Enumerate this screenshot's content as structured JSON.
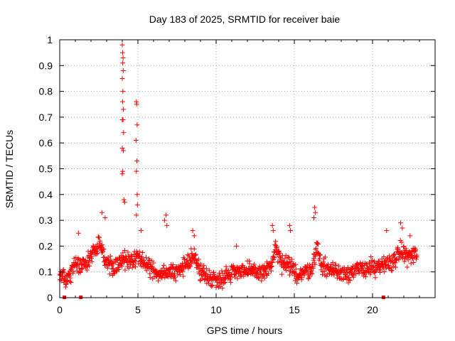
{
  "chart_data": {
    "type": "scatter",
    "title": "Day 183 of 2025, SRMTID for receiver baie",
    "xlabel": "GPS time / hours",
    "ylabel": "SRMTID / TECUs",
    "xlim": [
      0,
      24
    ],
    "ylim": [
      0,
      1
    ],
    "xticks": [
      0,
      5,
      10,
      15,
      20
    ],
    "yticks": [
      0,
      0.1,
      0.2,
      0.3,
      0.4,
      0.5,
      0.6,
      0.7,
      0.8,
      0.9,
      1
    ],
    "xtick_labels": [
      "0",
      "5",
      "10",
      "15",
      "20"
    ],
    "ytick_labels": [
      "0",
      "0.1",
      "0.2",
      "0.3",
      "0.4",
      "0.5",
      "0.6",
      "0.7",
      "0.8",
      "0.9",
      "1"
    ],
    "grid": true,
    "marker": "plus",
    "color": "#ff0000",
    "series": [
      {
        "name": "SRMTID",
        "spikes": [
          {
            "x": 4.0,
            "y": 0.98
          },
          {
            "x": 4.02,
            "y": 0.95
          },
          {
            "x": 4.05,
            "y": 0.93
          },
          {
            "x": 4.03,
            "y": 0.91
          },
          {
            "x": 4.06,
            "y": 0.88
          },
          {
            "x": 4.0,
            "y": 0.85
          },
          {
            "x": 4.04,
            "y": 0.8
          },
          {
            "x": 4.02,
            "y": 0.76
          },
          {
            "x": 4.07,
            "y": 0.73
          },
          {
            "x": 4.0,
            "y": 0.69
          },
          {
            "x": 4.05,
            "y": 0.69
          },
          {
            "x": 4.08,
            "y": 0.64
          },
          {
            "x": 4.0,
            "y": 0.58
          },
          {
            "x": 4.07,
            "y": 0.57
          },
          {
            "x": 4.03,
            "y": 0.49
          },
          {
            "x": 4.0,
            "y": 0.48
          },
          {
            "x": 4.1,
            "y": 0.38
          },
          {
            "x": 4.15,
            "y": 0.37
          },
          {
            "x": 4.9,
            "y": 0.76
          },
          {
            "x": 4.92,
            "y": 0.75
          },
          {
            "x": 4.95,
            "y": 0.67
          },
          {
            "x": 4.88,
            "y": 0.61
          },
          {
            "x": 4.93,
            "y": 0.53
          },
          {
            "x": 4.9,
            "y": 0.49
          },
          {
            "x": 4.95,
            "y": 0.4
          },
          {
            "x": 4.97,
            "y": 0.36
          },
          {
            "x": 4.9,
            "y": 0.32
          },
          {
            "x": 2.7,
            "y": 0.33
          },
          {
            "x": 2.9,
            "y": 0.31
          },
          {
            "x": 6.8,
            "y": 0.32
          },
          {
            "x": 6.7,
            "y": 0.3
          },
          {
            "x": 6.85,
            "y": 0.28
          },
          {
            "x": 16.3,
            "y": 0.35
          },
          {
            "x": 16.35,
            "y": 0.33
          },
          {
            "x": 16.25,
            "y": 0.31
          },
          {
            "x": 14.7,
            "y": 0.28
          },
          {
            "x": 14.75,
            "y": 0.26
          },
          {
            "x": 13.6,
            "y": 0.28
          },
          {
            "x": 13.65,
            "y": 0.26
          },
          {
            "x": 1.2,
            "y": 0.25
          },
          {
            "x": 5.2,
            "y": 0.26
          },
          {
            "x": 8.5,
            "y": 0.26
          },
          {
            "x": 8.6,
            "y": 0.24
          },
          {
            "x": 21.8,
            "y": 0.29
          },
          {
            "x": 21.9,
            "y": 0.27
          },
          {
            "x": 20.9,
            "y": 0.26
          },
          {
            "x": 22.4,
            "y": 0.24
          },
          {
            "x": 11.3,
            "y": 0.2
          }
        ],
        "baseline": [
          {
            "x": 0,
            "y": 0.09
          },
          {
            "x": 0.5,
            "y": 0.07
          },
          {
            "x": 1.0,
            "y": 0.13
          },
          {
            "x": 1.5,
            "y": 0.13
          },
          {
            "x": 2.0,
            "y": 0.16
          },
          {
            "x": 2.5,
            "y": 0.21
          },
          {
            "x": 3.0,
            "y": 0.14
          },
          {
            "x": 3.5,
            "y": 0.12
          },
          {
            "x": 4.0,
            "y": 0.15
          },
          {
            "x": 4.5,
            "y": 0.13
          },
          {
            "x": 5.0,
            "y": 0.16
          },
          {
            "x": 5.5,
            "y": 0.13
          },
          {
            "x": 6.0,
            "y": 0.1
          },
          {
            "x": 6.5,
            "y": 0.1
          },
          {
            "x": 7.0,
            "y": 0.1
          },
          {
            "x": 7.5,
            "y": 0.1
          },
          {
            "x": 8.0,
            "y": 0.12
          },
          {
            "x": 8.5,
            "y": 0.17
          },
          {
            "x": 9.0,
            "y": 0.1
          },
          {
            "x": 9.5,
            "y": 0.08
          },
          {
            "x": 10.0,
            "y": 0.07
          },
          {
            "x": 10.5,
            "y": 0.08
          },
          {
            "x": 11.0,
            "y": 0.1
          },
          {
            "x": 11.5,
            "y": 0.11
          },
          {
            "x": 12.0,
            "y": 0.1
          },
          {
            "x": 12.5,
            "y": 0.1
          },
          {
            "x": 13.0,
            "y": 0.1
          },
          {
            "x": 13.5,
            "y": 0.12
          },
          {
            "x": 13.8,
            "y": 0.19
          },
          {
            "x": 14.2,
            "y": 0.13
          },
          {
            "x": 14.7,
            "y": 0.12
          },
          {
            "x": 15.2,
            "y": 0.09
          },
          {
            "x": 15.7,
            "y": 0.1
          },
          {
            "x": 16.2,
            "y": 0.12
          },
          {
            "x": 16.4,
            "y": 0.2
          },
          {
            "x": 16.8,
            "y": 0.12
          },
          {
            "x": 17.3,
            "y": 0.11
          },
          {
            "x": 17.8,
            "y": 0.1
          },
          {
            "x": 18.3,
            "y": 0.1
          },
          {
            "x": 18.8,
            "y": 0.1
          },
          {
            "x": 19.3,
            "y": 0.11
          },
          {
            "x": 19.8,
            "y": 0.12
          },
          {
            "x": 20.3,
            "y": 0.11
          },
          {
            "x": 20.8,
            "y": 0.13
          },
          {
            "x": 21.3,
            "y": 0.14
          },
          {
            "x": 21.8,
            "y": 0.18
          },
          {
            "x": 22.3,
            "y": 0.16
          },
          {
            "x": 22.8,
            "y": 0.17
          }
        ],
        "spread": 0.05,
        "x_step": 0.02,
        "x_range": [
          0,
          22.85
        ]
      }
    ],
    "zero_markers": [
      {
        "x": 0.3,
        "y": 0
      },
      {
        "x": 1.35,
        "y": 0
      },
      {
        "x": 20.7,
        "y": 0
      }
    ]
  }
}
